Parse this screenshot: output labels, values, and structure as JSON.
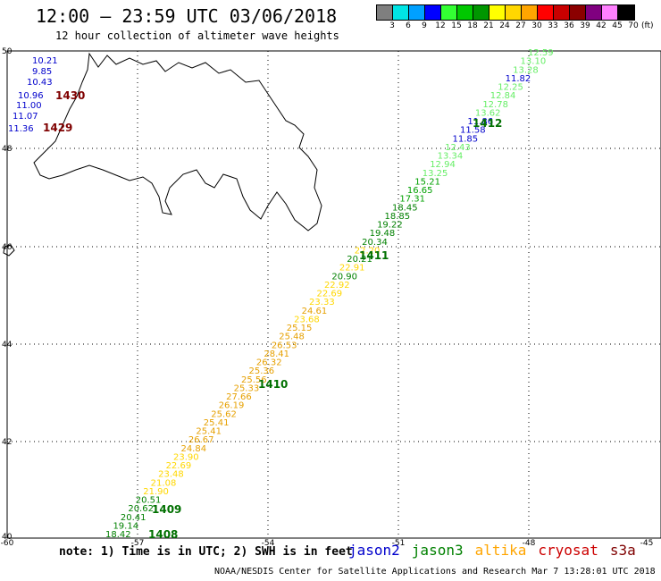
{
  "header": {
    "title": "12:00 — 23:59 UTC 03/06/2018",
    "subtitle": "12 hour collection of altimeter wave heights"
  },
  "colorbar": {
    "colors": [
      "#7f7f7f",
      "#00e5e5",
      "#00a0ff",
      "#0000ff",
      "#33ff33",
      "#00c800",
      "#009600",
      "#ffff00",
      "#ffd700",
      "#ffa500",
      "#ff0000",
      "#c80000",
      "#8b0000",
      "#800080",
      "#ff80ff",
      "#000000"
    ],
    "ticks": [
      "3",
      "6",
      "9",
      "12",
      "15",
      "18",
      "21",
      "24",
      "27",
      "30",
      "33",
      "36",
      "39",
      "42",
      "45",
      "70"
    ],
    "unit": "(ft)"
  },
  "axes": {
    "lat_labels": [
      "50",
      "48",
      "46",
      "44",
      "42",
      "40"
    ],
    "lon_labels": [
      "-60",
      "-57",
      "-54",
      "-51",
      "-48",
      "-45"
    ]
  },
  "tracks": [
    {
      "satellite": "jason2",
      "color": "#0000cc",
      "label_color": "#7f0000",
      "values": [
        "10.21",
        "9.85",
        "10.43",
        "10.96",
        "11.00",
        "11.07",
        "11.36"
      ],
      "labels": [
        "1430",
        "1429"
      ]
    },
    {
      "satellite": "jason3",
      "values": [
        {
          "v": "12.59",
          "c": "#66ee66"
        },
        {
          "v": "13.10",
          "c": "#66ee66"
        },
        {
          "v": "13.28",
          "c": "#66ee66"
        },
        {
          "v": "11.82",
          "c": "#0000cc"
        },
        {
          "v": "12.25",
          "c": "#66ee66"
        },
        {
          "v": "12.84",
          "c": "#66ee66"
        },
        {
          "v": "12.78",
          "c": "#66ee66"
        },
        {
          "v": "13.62",
          "c": "#66ee66"
        },
        {
          "v": "11.86",
          "c": "#0000cc"
        },
        {
          "v": "11.58",
          "c": "#0000cc"
        },
        {
          "v": "11.85",
          "c": "#0000cc"
        },
        {
          "v": "12.43",
          "c": "#66ee66"
        },
        {
          "v": "13.34",
          "c": "#66ee66"
        },
        {
          "v": "12.94",
          "c": "#66ee66"
        },
        {
          "v": "13.25",
          "c": "#66ee66"
        },
        {
          "v": "15.21",
          "c": "#00a000"
        },
        {
          "v": "16.65",
          "c": "#00a000"
        },
        {
          "v": "17.31",
          "c": "#00a000"
        },
        {
          "v": "18.45",
          "c": "#008000"
        },
        {
          "v": "18.85",
          "c": "#008000"
        },
        {
          "v": "19.22",
          "c": "#008000"
        },
        {
          "v": "19.48",
          "c": "#008000"
        },
        {
          "v": "20.34",
          "c": "#008000"
        },
        {
          "v": "22.20",
          "c": "#ffd700"
        },
        {
          "v": "20.21",
          "c": "#008000"
        },
        {
          "v": "22.91",
          "c": "#ffd700"
        },
        {
          "v": "20.90",
          "c": "#008000"
        },
        {
          "v": "22.92",
          "c": "#ffd700"
        },
        {
          "v": "22.69",
          "c": "#ffd700"
        },
        {
          "v": "23.33",
          "c": "#ffd700"
        },
        {
          "v": "24.61",
          "c": "#e6a000"
        },
        {
          "v": "23.68",
          "c": "#ffd700"
        },
        {
          "v": "25.15",
          "c": "#e6a000"
        },
        {
          "v": "25.48",
          "c": "#e6a000"
        },
        {
          "v": "26.53",
          "c": "#e6a000"
        },
        {
          "v": "28.41",
          "c": "#e6a000"
        },
        {
          "v": "26.32",
          "c": "#e6a000"
        },
        {
          "v": "25.36",
          "c": "#e6a000"
        },
        {
          "v": "25.56",
          "c": "#e6a000"
        },
        {
          "v": "25.33",
          "c": "#e6a000"
        },
        {
          "v": "27.66",
          "c": "#e6a000"
        },
        {
          "v": "26.19",
          "c": "#e6a000"
        },
        {
          "v": "25.62",
          "c": "#e6a000"
        },
        {
          "v": "25.41",
          "c": "#e6a000"
        },
        {
          "v": "25.41",
          "c": "#e6a000"
        },
        {
          "v": "26.67",
          "c": "#e6a000"
        },
        {
          "v": "24.84",
          "c": "#e6a000"
        },
        {
          "v": "23.90",
          "c": "#ffd700"
        },
        {
          "v": "22.69",
          "c": "#ffd700"
        },
        {
          "v": "23.48",
          "c": "#ffd700"
        },
        {
          "v": "21.08",
          "c": "#ffd700"
        },
        {
          "v": "21.90",
          "c": "#ffd700"
        },
        {
          "v": "20.51",
          "c": "#008000"
        },
        {
          "v": "20.62",
          "c": "#008000"
        },
        {
          "v": "20.41",
          "c": "#008000"
        },
        {
          "v": "19.14",
          "c": "#008000"
        },
        {
          "v": "18.42",
          "c": "#008000"
        }
      ],
      "labels": [
        "1412",
        "1411",
        "1410",
        "1409",
        "1408"
      ],
      "label_color": "#007000"
    }
  ],
  "note": "note: 1) Time is in UTC; 2) SWH is in feet",
  "legend": [
    {
      "name": "jason2",
      "color": "#0000cc"
    },
    {
      "name": "jason3",
      "color": "#008000"
    },
    {
      "name": "altika",
      "color": "#ffa500"
    },
    {
      "name": "cryosat",
      "color": "#cc0000"
    },
    {
      "name": "s3a",
      "color": "#7f0000"
    }
  ],
  "credit": "NOAA/NESDIS Center for Satellite Applications and Research   Mar  7 13:28:01 UTC 2018"
}
